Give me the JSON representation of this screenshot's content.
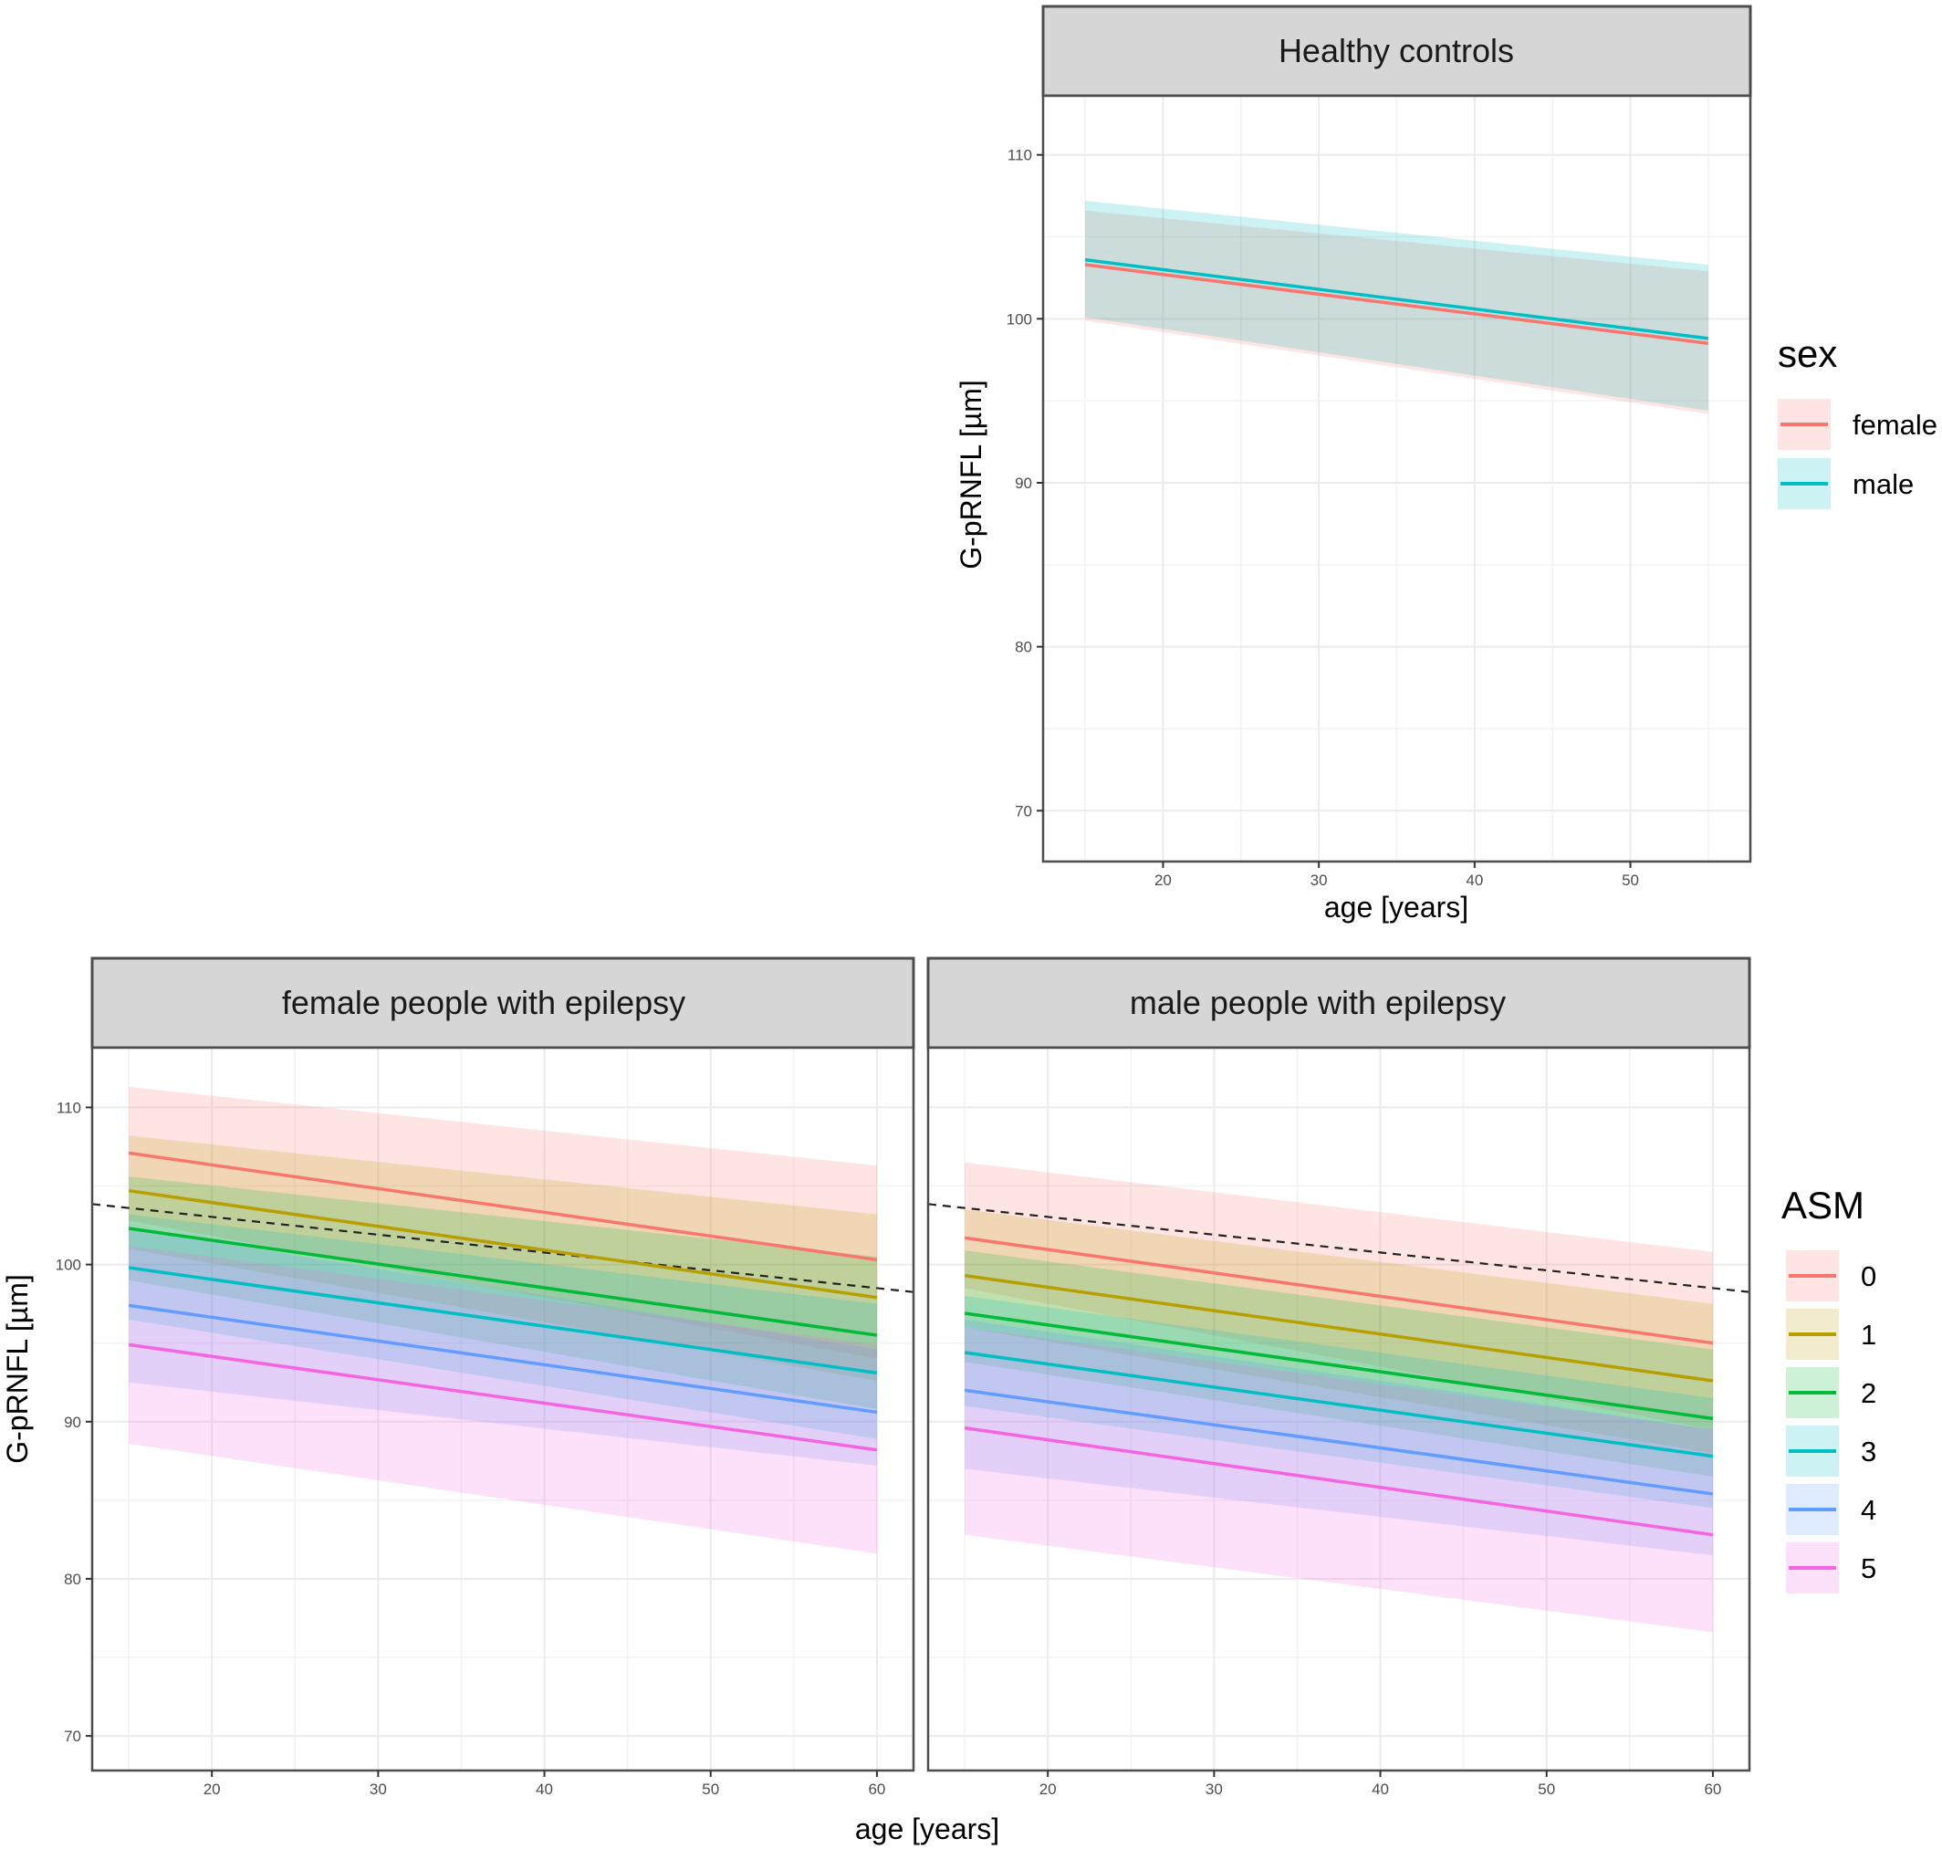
{
  "chart_data": [
    {
      "type": "line",
      "panel": "Healthy controls",
      "title": "Healthy controls",
      "xlabel": "age [years]",
      "ylabel": "G-pRNFL [µm]",
      "xlim": [
        12.3,
        57.7
      ],
      "ylim": [
        66.9,
        113.6
      ],
      "xticks": [
        20,
        30,
        40,
        50
      ],
      "yticks": [
        70,
        80,
        90,
        100,
        110
      ],
      "x": [
        15,
        55
      ],
      "legend_title": "sex",
      "series": [
        {
          "name": "female",
          "color": "#F8766D",
          "values": [
            103.3,
            98.5
          ],
          "lower": [
            99.9,
            94.2
          ],
          "upper": [
            106.6,
            102.9
          ]
        },
        {
          "name": "male",
          "color": "#00BFC4",
          "values": [
            103.6,
            98.8
          ],
          "lower": [
            100.1,
            94.4
          ],
          "upper": [
            107.2,
            103.3
          ]
        }
      ]
    },
    {
      "type": "line",
      "panel": "female people with epilepsy",
      "title": "female people with epilepsy",
      "xlabel": "age [years]",
      "ylabel": "G-pRNFL [µm]",
      "xlim": [
        12.8,
        62.2
      ],
      "ylim": [
        67.8,
        113.8
      ],
      "xticks": [
        20,
        30,
        40,
        50,
        60
      ],
      "yticks": [
        70,
        80,
        90,
        100,
        110
      ],
      "x": [
        15,
        60
      ],
      "reference_line": [
        103.6,
        98.5
      ],
      "legend_title": "ASM",
      "series": [
        {
          "name": "0",
          "color": "#F8766D",
          "values": [
            107.1,
            100.3
          ],
          "lower": [
            102.8,
            94.0
          ],
          "upper": [
            111.3,
            106.3
          ]
        },
        {
          "name": "1",
          "color": "#B79F00",
          "values": [
            104.7,
            97.9
          ],
          "lower": [
            101.0,
            92.6
          ],
          "upper": [
            108.2,
            103.2
          ]
        },
        {
          "name": "2",
          "color": "#00BA38",
          "values": [
            102.3,
            95.5
          ],
          "lower": [
            99.0,
            90.8
          ],
          "upper": [
            105.6,
            100.5
          ]
        },
        {
          "name": "3",
          "color": "#00BFC4",
          "values": [
            99.8,
            93.1
          ],
          "lower": [
            96.5,
            88.9
          ],
          "upper": [
            103.2,
            97.5
          ]
        },
        {
          "name": "4",
          "color": "#619CFF",
          "values": [
            97.4,
            90.6
          ],
          "lower": [
            92.5,
            87.2
          ],
          "upper": [
            102.3,
            94.6
          ]
        },
        {
          "name": "5",
          "color": "#F564E3",
          "values": [
            94.9,
            88.2
          ],
          "lower": [
            88.6,
            81.6
          ],
          "upper": [
            101.2,
            94.9
          ]
        }
      ]
    },
    {
      "type": "line",
      "panel": "male people with epilepsy",
      "title": "male people with epilepsy",
      "xlabel": "age [years]",
      "ylabel": "G-pRNFL [µm]",
      "xlim": [
        12.8,
        62.2
      ],
      "ylim": [
        67.8,
        113.8
      ],
      "xticks": [
        20,
        30,
        40,
        50,
        60
      ],
      "yticks": [
        70,
        80,
        90,
        100,
        110
      ],
      "x": [
        15,
        60
      ],
      "reference_line": [
        103.6,
        98.5
      ],
      "legend_title": "ASM",
      "series": [
        {
          "name": "0",
          "color": "#F8766D",
          "values": [
            101.7,
            95.0
          ],
          "lower": [
            98.5,
            89.5
          ],
          "upper": [
            106.5,
            100.8
          ]
        },
        {
          "name": "1",
          "color": "#B79F00",
          "values": [
            99.3,
            92.6
          ],
          "lower": [
            96.0,
            88.0
          ],
          "upper": [
            103.5,
            97.5
          ]
        },
        {
          "name": "2",
          "color": "#00BA38",
          "values": [
            96.9,
            90.2
          ],
          "lower": [
            93.8,
            86.5
          ],
          "upper": [
            100.9,
            94.6
          ]
        },
        {
          "name": "3",
          "color": "#00BFC4",
          "values": [
            94.4,
            87.8
          ],
          "lower": [
            91.0,
            84.5
          ],
          "upper": [
            98.0,
            91.5
          ]
        },
        {
          "name": "4",
          "color": "#619CFF",
          "values": [
            92.0,
            85.4
          ],
          "lower": [
            87.0,
            81.5
          ],
          "upper": [
            96.5,
            89.5
          ]
        },
        {
          "name": "5",
          "color": "#F564E3",
          "values": [
            89.6,
            82.8
          ],
          "lower": [
            82.8,
            76.6
          ],
          "upper": [
            96.0,
            89.5
          ]
        }
      ]
    }
  ],
  "legends": {
    "sex": {
      "title": "sex",
      "items": [
        {
          "label": "female",
          "color": "#F8766D"
        },
        {
          "label": "male",
          "color": "#00BFC4"
        }
      ]
    },
    "asm": {
      "title": "ASM",
      "items": [
        {
          "label": "0",
          "color": "#F8766D"
        },
        {
          "label": "1",
          "color": "#B79F00"
        },
        {
          "label": "2",
          "color": "#00BA38"
        },
        {
          "label": "3",
          "color": "#00BFC4"
        },
        {
          "label": "4",
          "color": "#619CFF"
        },
        {
          "label": "5",
          "color": "#F564E3"
        }
      ]
    }
  },
  "shared_xlabel": "age [years]"
}
